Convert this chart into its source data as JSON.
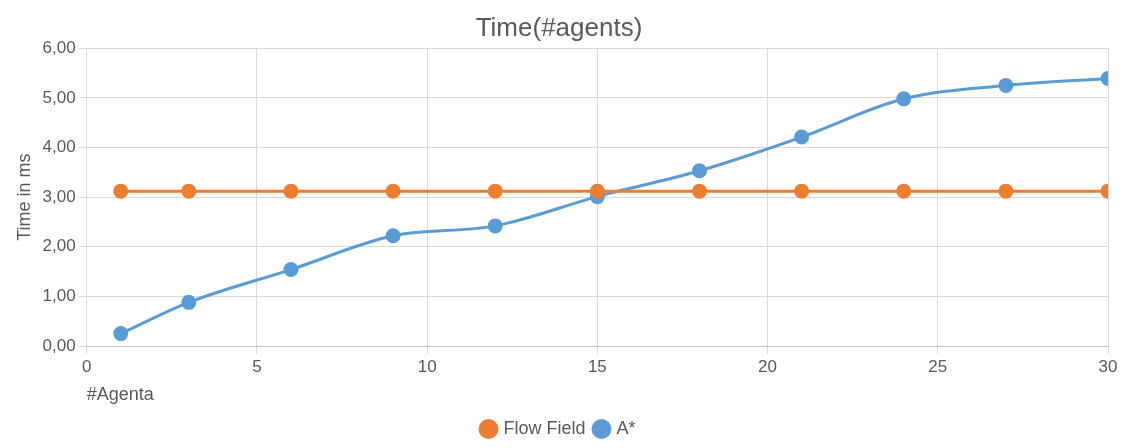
{
  "chart_data": {
    "type": "line",
    "title": "Time(#agents)",
    "xlabel": "#Agenta",
    "ylabel": "Time in ms",
    "x": [
      1,
      3,
      6,
      9,
      12,
      15,
      18,
      21,
      24,
      27,
      30
    ],
    "series": [
      {
        "name": "A*",
        "color": "#5b9bd5",
        "values": [
          0.25,
          0.88,
          1.54,
          2.22,
          2.42,
          3.01,
          3.53,
          4.21,
          4.98,
          5.25,
          5.39
        ]
      },
      {
        "name": "Flow Field",
        "color": "#ed7d31",
        "values": [
          3.12,
          3.12,
          3.12,
          3.12,
          3.12,
          3.12,
          3.12,
          3.12,
          3.12,
          3.12,
          3.12
        ]
      }
    ],
    "xlim": [
      0,
      30
    ],
    "xticks": [
      0,
      5,
      10,
      15,
      20,
      25,
      30
    ],
    "ylim": [
      0,
      6
    ],
    "yticks": [
      {
        "value": 0,
        "label": "0,00"
      },
      {
        "value": 1,
        "label": "1,00"
      },
      {
        "value": 2,
        "label": "2,00"
      },
      {
        "value": 3,
        "label": "3,00"
      },
      {
        "value": 4,
        "label": "4,00"
      },
      {
        "value": 5,
        "label": "5,00"
      },
      {
        "value": 6,
        "label": "6,00"
      }
    ],
    "grid": true,
    "legend": "bottom",
    "marker": "circle",
    "line_style": "solid"
  }
}
